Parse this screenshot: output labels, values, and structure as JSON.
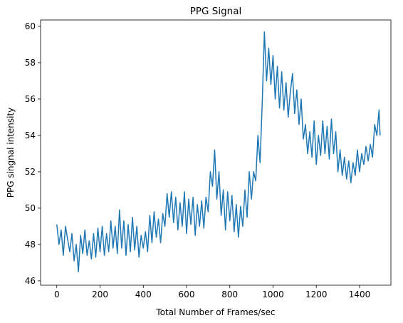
{
  "chart_data": {
    "type": "line",
    "title": "PPG Signal",
    "x_label": "Total Number of Frames/sec",
    "y_label": "PPG singnal intensity",
    "xlim": [
      -75,
      1545
    ],
    "ylim": [
      45.76,
      60.35
    ],
    "xticks": [
      0,
      200,
      400,
      600,
      800,
      1000,
      1200,
      1400
    ],
    "yticks": [
      46,
      48,
      50,
      52,
      54,
      56,
      58,
      60
    ],
    "grid": false,
    "series": [
      {
        "name": "PPG",
        "color": "#1f77b4",
        "x": [
          0,
          10,
          20,
          30,
          40,
          50,
          60,
          70,
          80,
          90,
          100,
          110,
          120,
          130,
          140,
          150,
          160,
          170,
          180,
          190,
          200,
          210,
          220,
          230,
          240,
          250,
          260,
          270,
          280,
          290,
          300,
          310,
          320,
          330,
          340,
          350,
          360,
          370,
          380,
          390,
          400,
          410,
          420,
          430,
          440,
          450,
          460,
          470,
          480,
          490,
          500,
          510,
          520,
          530,
          540,
          550,
          560,
          570,
          580,
          590,
          600,
          610,
          620,
          630,
          640,
          650,
          660,
          670,
          680,
          690,
          700,
          710,
          720,
          730,
          740,
          750,
          760,
          770,
          780,
          790,
          800,
          810,
          820,
          830,
          840,
          850,
          860,
          870,
          880,
          890,
          900,
          910,
          920,
          930,
          940,
          950,
          960,
          970,
          980,
          990,
          1000,
          1010,
          1020,
          1030,
          1040,
          1050,
          1060,
          1070,
          1080,
          1090,
          1100,
          1110,
          1120,
          1130,
          1140,
          1150,
          1160,
          1170,
          1180,
          1190,
          1200,
          1210,
          1220,
          1230,
          1240,
          1250,
          1260,
          1270,
          1280,
          1290,
          1300,
          1310,
          1320,
          1330,
          1340,
          1350,
          1360,
          1370,
          1380,
          1390,
          1400,
          1410,
          1420,
          1430,
          1440,
          1450,
          1460,
          1470,
          1480,
          1490,
          1495
        ],
        "values": [
          49.1,
          48.0,
          48.8,
          47.4,
          49.0,
          48.3,
          47.6,
          48.6,
          47.1,
          48.0,
          46.5,
          48.5,
          47.5,
          48.8,
          47.4,
          48.2,
          47.2,
          48.6,
          47.3,
          48.9,
          47.6,
          49.0,
          47.4,
          48.6,
          47.6,
          49.3,
          47.8,
          49.0,
          47.5,
          49.9,
          47.8,
          49.3,
          47.4,
          49.1,
          47.6,
          49.5,
          47.7,
          49.0,
          47.3,
          48.5,
          47.8,
          48.7,
          47.6,
          49.6,
          48.1,
          49.8,
          48.4,
          49.4,
          48.1,
          49.7,
          49.0,
          50.8,
          49.5,
          50.9,
          49.2,
          50.6,
          48.8,
          50.3,
          49.0,
          50.9,
          48.6,
          50.5,
          49.1,
          50.6,
          48.5,
          50.2,
          49.0,
          50.4,
          48.9,
          50.6,
          49.8,
          52.0,
          51.2,
          53.2,
          50.5,
          52.0,
          49.6,
          51.0,
          48.8,
          50.9,
          49.3,
          50.7,
          48.7,
          50.2,
          48.4,
          50.1,
          49.0,
          51.0,
          49.5,
          52.0,
          50.5,
          52.0,
          51.5,
          54.0,
          52.5,
          55.8,
          59.7,
          57.0,
          58.8,
          56.8,
          58.4,
          56.0,
          57.8,
          55.5,
          57.5,
          55.4,
          56.9,
          55.0,
          56.4,
          57.4,
          55.2,
          56.5,
          54.6,
          56.0,
          53.8,
          54.6,
          53.0,
          54.2,
          52.8,
          54.8,
          52.4,
          54.0,
          52.9,
          54.8,
          53.0,
          54.5,
          52.7,
          54.9,
          53.0,
          54.2,
          52.0,
          53.2,
          51.8,
          52.8,
          51.6,
          52.6,
          51.4,
          52.5,
          51.8,
          53.2,
          52.0,
          53.0,
          52.4,
          53.4,
          52.6,
          53.5,
          52.8,
          54.6,
          54.0,
          55.4,
          54.0
        ]
      }
    ]
  }
}
